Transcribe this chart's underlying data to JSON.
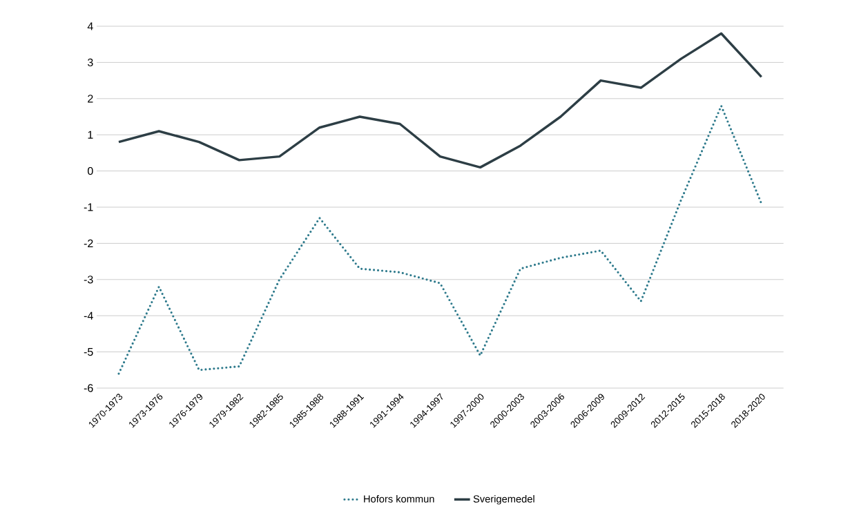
{
  "chart_data": {
    "type": "line",
    "categories": [
      "1970-1973",
      "1973-1976",
      "1976-1979",
      "1979-1982",
      "1982-1985",
      "1985-1988",
      "1988-1991",
      "1991-1994",
      "1994-1997",
      "1997-2000",
      "2000-2003",
      "2003-2006",
      "2006-2009",
      "2009-2012",
      "2012-2015",
      "2015-2018",
      "2018-2020"
    ],
    "series": [
      {
        "name": "Hofors kommun",
        "color": "#2e7a8c",
        "line_style": "dotted",
        "values": [
          -5.6,
          -3.2,
          -5.5,
          -5.4,
          -3.0,
          -1.3,
          -2.7,
          -2.8,
          -3.1,
          -5.1,
          -2.7,
          -2.4,
          -2.2,
          -3.6,
          -0.8,
          1.8,
          -0.9
        ]
      },
      {
        "name": "Sverigemedel",
        "color": "#2d3e45",
        "line_style": "solid",
        "values": [
          0.8,
          1.1,
          0.8,
          0.3,
          0.4,
          1.2,
          1.5,
          1.3,
          0.4,
          0.1,
          0.7,
          1.5,
          2.5,
          2.3,
          3.1,
          3.8,
          2.6
        ]
      }
    ],
    "ylim": [
      -6,
      4
    ],
    "yticks": [
      -6,
      -5,
      -4,
      -3,
      -2,
      -1,
      0,
      1,
      2,
      3,
      4
    ],
    "grid": "y",
    "legend": "bottom",
    "marker": "none"
  }
}
